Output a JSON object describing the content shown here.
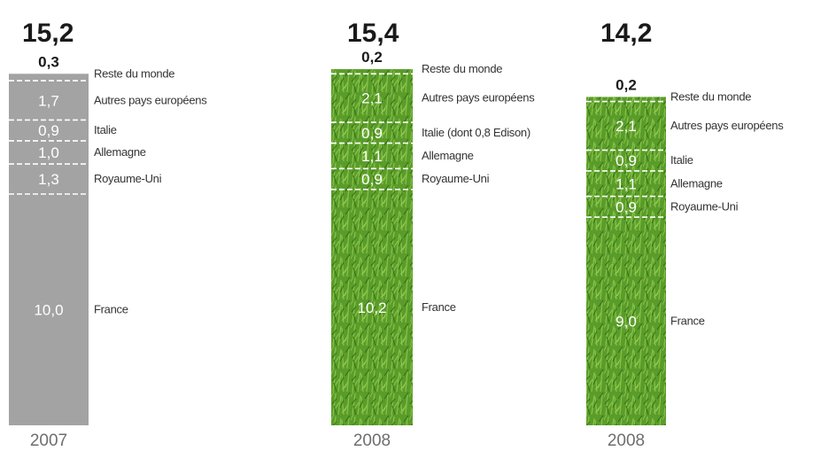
{
  "chart_data": [
    {
      "type": "stacked-bar",
      "total": "15,2",
      "year": "2007",
      "fill": "#a3a3a3",
      "segments": [
        {
          "value": 10.0,
          "value_label": "10,0",
          "name": "France"
        },
        {
          "value": 1.3,
          "value_label": "1,3",
          "name": "Royaume-Uni"
        },
        {
          "value": 1.0,
          "value_label": "1,0",
          "name": "Allemagne"
        },
        {
          "value": 0.9,
          "value_label": "0,9",
          "name": "Italie"
        },
        {
          "value": 1.7,
          "value_label": "1,7",
          "name": "Autres pays européens"
        },
        {
          "value": 0.3,
          "value_label": "0,3",
          "name": "Reste du monde"
        }
      ]
    },
    {
      "type": "stacked-bar",
      "total": "15,4",
      "year": "2008",
      "fill": "#5fa02c",
      "segments": [
        {
          "value": 10.2,
          "value_label": "10,2",
          "name": "France"
        },
        {
          "value": 0.9,
          "value_label": "0,9",
          "name": "Royaume-Uni"
        },
        {
          "value": 1.1,
          "value_label": "1,1",
          "name": "Allemagne"
        },
        {
          "value": 0.9,
          "value_label": "0,9",
          "name": "Italie (dont 0,8 Edison)"
        },
        {
          "value": 2.1,
          "value_label": "2,1",
          "name": "Autres pays européens"
        },
        {
          "value": 0.2,
          "value_label": "0,2",
          "name": "Reste du monde"
        }
      ]
    },
    {
      "type": "stacked-bar",
      "total": "14,2",
      "year": "2008",
      "fill": "#5fa02c",
      "segments": [
        {
          "value": 9.0,
          "value_label": "9,0",
          "name": "France"
        },
        {
          "value": 0.9,
          "value_label": "0,9",
          "name": "Royaume-Uni"
        },
        {
          "value": 1.1,
          "value_label": "1,1",
          "name": "Allemagne"
        },
        {
          "value": 0.9,
          "value_label": "0,9",
          "name": "Italie"
        },
        {
          "value": 2.1,
          "value_label": "2,1",
          "name": "Autres pays européens"
        },
        {
          "value": 0.2,
          "value_label": "0,2",
          "name": "Reste du monde"
        }
      ]
    }
  ]
}
